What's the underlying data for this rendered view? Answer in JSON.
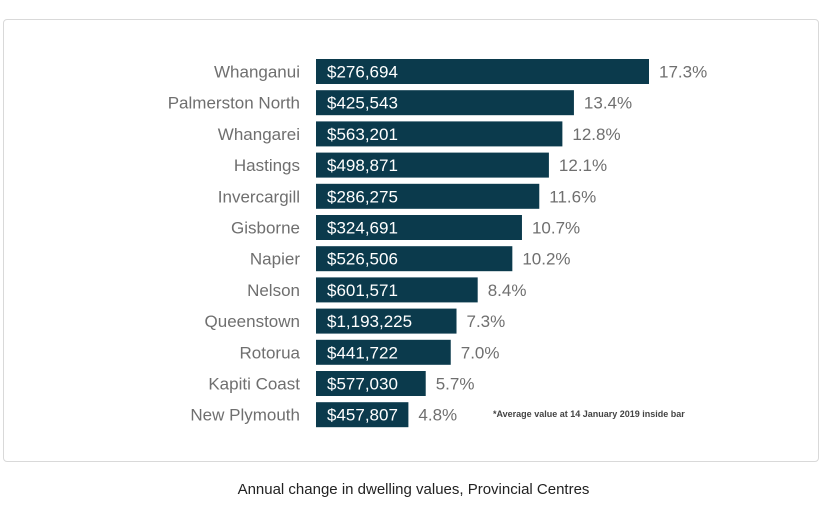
{
  "chart_data": {
    "type": "bar",
    "orientation": "horizontal",
    "categories": [
      "Whanganui",
      "Palmerston North",
      "Whangarei",
      "Hastings",
      "Invercargill",
      "Gisborne",
      "Napier",
      "Nelson",
      "Queenstown",
      "Rotorua",
      "Kapiti Coast",
      "New Plymouth"
    ],
    "series": [
      {
        "values": [
          17.3,
          13.4,
          12.8,
          12.1,
          11.6,
          10.7,
          10.2,
          8.4,
          7.3,
          7.0,
          5.7,
          4.8
        ],
        "value_labels": [
          "17.3%",
          "13.4%",
          "12.8%",
          "12.1%",
          "11.6%",
          "10.7%",
          "10.2%",
          "8.4%",
          "7.3%",
          "7.0%",
          "5.7%",
          "4.8%"
        ],
        "inside_labels": [
          "$276,694",
          "$425,543",
          "$563,201",
          "$498,871",
          "$286,275",
          "$324,691",
          "$526,506",
          "$601,571",
          "$1,193,225",
          "$441,722",
          "$577,030",
          "$457,807"
        ]
      }
    ],
    "xlim": [
      0,
      17.3
    ],
    "grid": false,
    "legend": "none",
    "note": "*Average  value at 14 January 2019 inside bar",
    "caption": "Annual change in dwelling values, Provincial Centres",
    "colors": {
      "bar": "#0b3a4c",
      "category_text": "#6f6f6f",
      "value_text": "#6f6f6f",
      "inside_text": "#ffffff",
      "note_text": "#444444"
    }
  }
}
